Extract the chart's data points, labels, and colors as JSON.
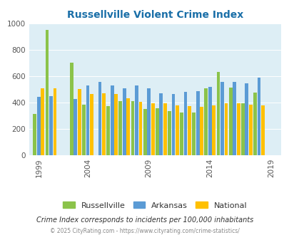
{
  "title": "Russellville Violent Crime Index",
  "years": [
    1999,
    2000,
    2001,
    2002,
    2004,
    2005,
    2006,
    2007,
    2008,
    2009,
    2010,
    2011,
    2012,
    2013,
    2014,
    2015,
    2016,
    2017,
    2018,
    2019
  ],
  "russellville": [
    315,
    950,
    null,
    700,
    385,
    null,
    370,
    410,
    410,
    350,
    355,
    335,
    325,
    325,
    510,
    630,
    515,
    395,
    475,
    null
  ],
  "arkansas": [
    445,
    450,
    null,
    425,
    530,
    555,
    530,
    505,
    530,
    510,
    470,
    465,
    480,
    485,
    520,
    555,
    555,
    545,
    590,
    null
  ],
  "national": [
    510,
    505,
    null,
    500,
    465,
    470,
    465,
    430,
    405,
    395,
    395,
    380,
    375,
    365,
    380,
    395,
    395,
    385,
    380,
    null
  ],
  "bar_colors": {
    "russellville": "#8bc34a",
    "arkansas": "#5b9bd5",
    "national": "#ffc000"
  },
  "bg_color": "#ddeef5",
  "ylim": [
    0,
    1000
  ],
  "yticks": [
    0,
    200,
    400,
    600,
    800,
    1000
  ],
  "xtick_labels": [
    "1999",
    "2004",
    "2009",
    "2014",
    "2019"
  ],
  "subtitle": "Crime Index corresponds to incidents per 100,000 inhabitants",
  "footer": "© 2025 CityRating.com - https://www.cityrating.com/crime-statistics/",
  "legend": [
    "Russellville",
    "Arkansas",
    "National"
  ],
  "title_color": "#1a6fa8",
  "subtitle_color": "#333333",
  "footer_color": "#888888"
}
